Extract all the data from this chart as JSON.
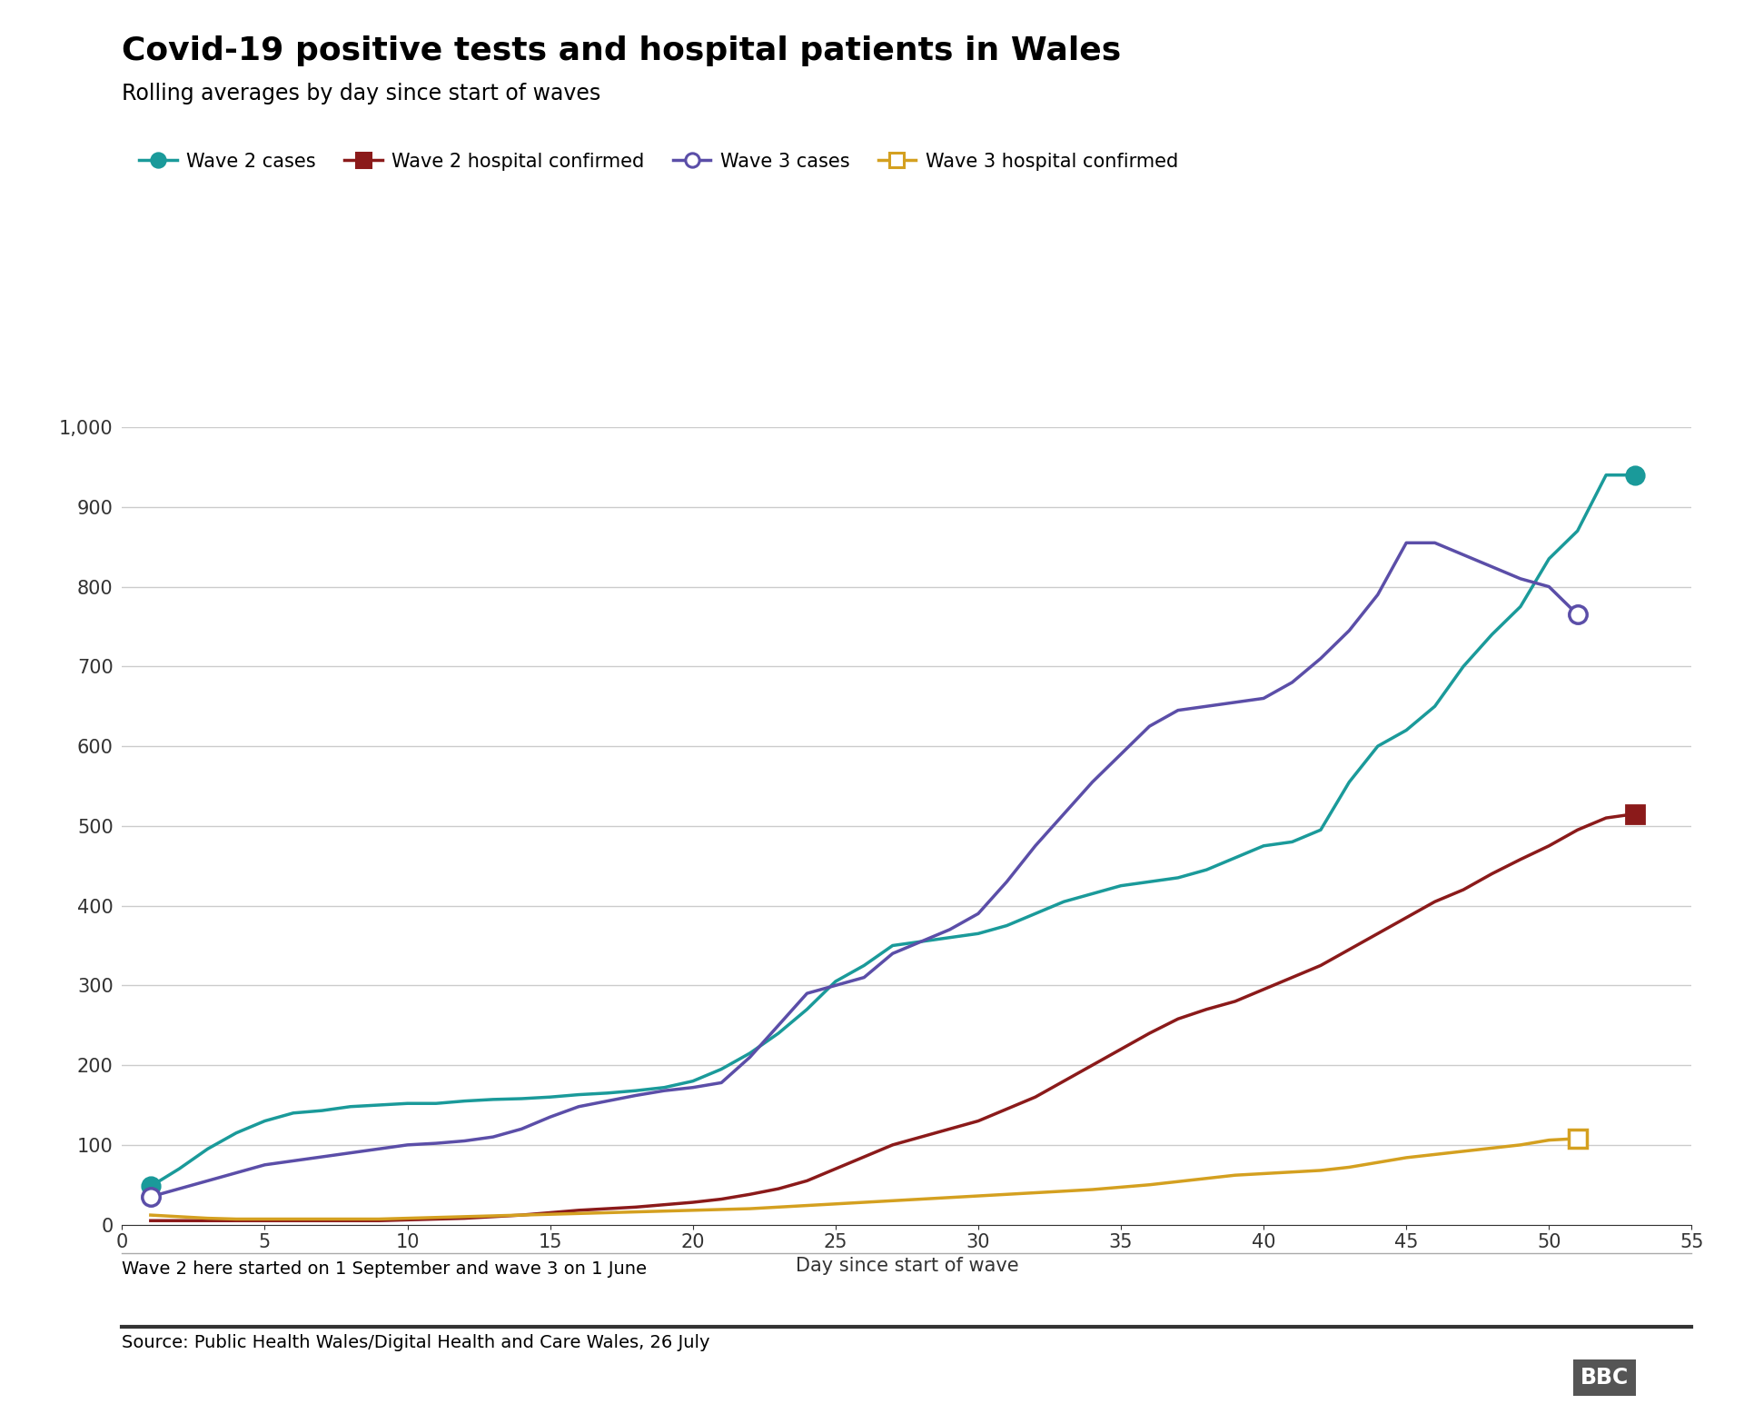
{
  "title": "Covid-19 positive tests and hospital patients in Wales",
  "subtitle": "Rolling averages by day since start of waves",
  "xlabel": "Day since start of wave",
  "ylabel": "",
  "footnote": "Wave 2 here started on 1 September and wave 3 on 1 June",
  "source": "Source: Public Health Wales/Digital Health and Care Wales, 26 July",
  "ylim": [
    0,
    1000
  ],
  "xlim": [
    0,
    55
  ],
  "yticks": [
    0,
    100,
    200,
    300,
    400,
    500,
    600,
    700,
    800,
    900,
    1000
  ],
  "xticks": [
    0,
    5,
    10,
    15,
    20,
    25,
    30,
    35,
    40,
    45,
    50,
    55
  ],
  "wave2_cases_x": [
    1,
    2,
    3,
    4,
    5,
    6,
    7,
    8,
    9,
    10,
    11,
    12,
    13,
    14,
    15,
    16,
    17,
    18,
    19,
    20,
    21,
    22,
    23,
    24,
    25,
    26,
    27,
    28,
    29,
    30,
    31,
    32,
    33,
    34,
    35,
    36,
    37,
    38,
    39,
    40,
    41,
    42,
    43,
    44,
    45,
    46,
    47,
    48,
    49,
    50,
    51,
    52,
    53
  ],
  "wave2_cases_y": [
    48,
    70,
    95,
    115,
    130,
    140,
    143,
    148,
    150,
    152,
    152,
    155,
    157,
    158,
    160,
    163,
    165,
    168,
    172,
    180,
    195,
    215,
    240,
    270,
    305,
    325,
    350,
    355,
    360,
    365,
    375,
    390,
    405,
    415,
    425,
    430,
    435,
    445,
    460,
    475,
    480,
    495,
    555,
    600,
    620,
    650,
    700,
    740,
    775,
    835,
    870,
    940,
    940
  ],
  "wave2_cases_color": "#1a9a9a",
  "wave2_cases_markerindices": [
    0,
    52
  ],
  "wave2_hosp_x": [
    1,
    2,
    3,
    4,
    5,
    6,
    7,
    8,
    9,
    10,
    11,
    12,
    13,
    14,
    15,
    16,
    17,
    18,
    19,
    20,
    21,
    22,
    23,
    24,
    25,
    26,
    27,
    28,
    29,
    30,
    31,
    32,
    33,
    34,
    35,
    36,
    37,
    38,
    39,
    40,
    41,
    42,
    43,
    44,
    45,
    46,
    47,
    48,
    49,
    50,
    51,
    52,
    53
  ],
  "wave2_hosp_y": [
    5,
    5,
    5,
    5,
    5,
    5,
    5,
    5,
    5,
    6,
    7,
    8,
    10,
    12,
    15,
    18,
    20,
    22,
    25,
    28,
    32,
    38,
    45,
    55,
    70,
    85,
    100,
    110,
    120,
    130,
    145,
    160,
    180,
    200,
    220,
    240,
    258,
    270,
    280,
    295,
    310,
    325,
    345,
    365,
    385,
    405,
    420,
    440,
    458,
    475,
    495,
    510,
    515
  ],
  "wave2_hosp_color": "#8b1a1a",
  "wave2_hosp_markerindices": [
    52
  ],
  "wave3_cases_x": [
    1,
    2,
    3,
    4,
    5,
    6,
    7,
    8,
    9,
    10,
    11,
    12,
    13,
    14,
    15,
    16,
    17,
    18,
    19,
    20,
    21,
    22,
    23,
    24,
    25,
    26,
    27,
    28,
    29,
    30,
    31,
    32,
    33,
    34,
    35,
    36,
    37,
    38,
    39,
    40,
    41,
    42,
    43,
    44,
    45,
    46,
    47,
    48,
    49,
    50,
    51
  ],
  "wave3_cases_y": [
    35,
    45,
    55,
    65,
    75,
    80,
    85,
    90,
    95,
    100,
    102,
    105,
    110,
    120,
    135,
    148,
    155,
    162,
    168,
    172,
    178,
    210,
    250,
    290,
    300,
    310,
    340,
    355,
    370,
    390,
    430,
    475,
    515,
    555,
    590,
    625,
    645,
    650,
    655,
    660,
    680,
    710,
    745,
    790,
    855,
    855,
    840,
    825,
    810,
    800,
    765
  ],
  "wave3_cases_color": "#5b4ea8",
  "wave3_cases_markerindices": [
    0,
    50
  ],
  "wave3_hosp_x": [
    1,
    2,
    3,
    4,
    5,
    6,
    7,
    8,
    9,
    10,
    11,
    12,
    13,
    14,
    15,
    16,
    17,
    18,
    19,
    20,
    21,
    22,
    23,
    24,
    25,
    26,
    27,
    28,
    29,
    30,
    31,
    32,
    33,
    34,
    35,
    36,
    37,
    38,
    39,
    40,
    41,
    42,
    43,
    44,
    45,
    46,
    47,
    48,
    49,
    50,
    51
  ],
  "wave3_hosp_y": [
    12,
    10,
    8,
    7,
    7,
    7,
    7,
    7,
    7,
    8,
    9,
    10,
    11,
    12,
    13,
    14,
    15,
    16,
    17,
    18,
    19,
    20,
    22,
    24,
    26,
    28,
    30,
    32,
    34,
    36,
    38,
    40,
    42,
    44,
    47,
    50,
    54,
    58,
    62,
    64,
    66,
    68,
    72,
    78,
    84,
    88,
    92,
    96,
    100,
    106,
    108
  ],
  "wave3_hosp_color": "#d4a020",
  "wave3_hosp_markerindices": [
    50
  ],
  "bg_color": "#ffffff",
  "grid_color": "#cccccc",
  "tick_color": "#333333",
  "title_fontsize": 26,
  "subtitle_fontsize": 17,
  "axis_label_fontsize": 15,
  "tick_fontsize": 15,
  "legend_fontsize": 15,
  "footnote_fontsize": 14
}
